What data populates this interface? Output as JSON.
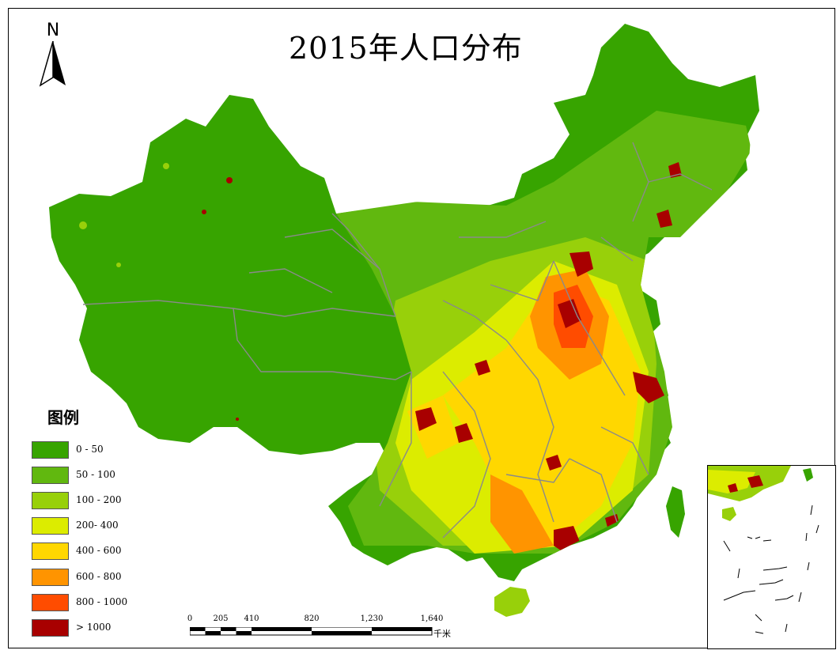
{
  "title": "2015年人口分布",
  "north_arrow": {
    "label": "N"
  },
  "legend": {
    "title": "图例",
    "classes": [
      {
        "label": "0 - 50",
        "color": "#37a400"
      },
      {
        "label": "50 - 100",
        "color": "#61b80f"
      },
      {
        "label": "100 - 200",
        "color": "#98d00a"
      },
      {
        "label": "200- 400",
        "color": "#dcec00"
      },
      {
        "label": "400 - 600",
        "color": "#ffd700"
      },
      {
        "label": "600 - 800",
        "color": "#ff9400"
      },
      {
        "label": "800 - 1000",
        "color": "#ff4c00"
      },
      {
        "label": "> 1000",
        "color": "#a80000"
      }
    ]
  },
  "scale_bar": {
    "ticks": [
      "0",
      "205",
      "410",
      "820",
      "1,230",
      "1,640"
    ],
    "unit": "千米"
  },
  "colors": {
    "boundary": "#8a8a8a",
    "sea": "#ffffff"
  }
}
